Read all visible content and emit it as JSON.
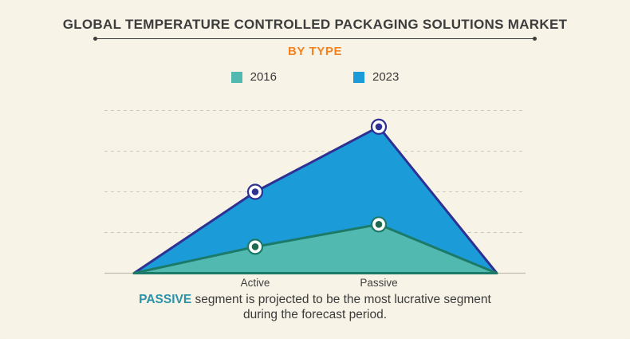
{
  "header": {
    "title": "GLOBAL TEMPERATURE CONTROLLED PACKAGING SOLUTIONS MARKET",
    "subtitle": "BY TYPE"
  },
  "colors": {
    "background": "#f6f2e4",
    "title_text": "#3d3d3d",
    "subtitle_orange": "#f5821f",
    "body_text": "#3b3b3b",
    "gridline": "#ccc8b7",
    "axis_line": "#c2beae",
    "footnote_highlight": "#2a93a9"
  },
  "chart_data": {
    "type": "area",
    "categories": [
      "Active",
      "Passive"
    ],
    "series": [
      {
        "name": "2016",
        "values": [
          0.65,
          1.2
        ],
        "fill": "#52b9b1",
        "stroke": "#1c7a68",
        "marker_center": "#1c6b4e"
      },
      {
        "name": "2023",
        "values": [
          2.0,
          3.6
        ],
        "fill": "#1b9cd8",
        "stroke": "#2e3192",
        "marker_center": "#2e3192"
      }
    ],
    "title": "GLOBAL TEMPERATURE CONTROLLED PACKAGING SOLUTIONS MARKET",
    "subtitle": "BY TYPE",
    "xlabel": "",
    "ylabel": "",
    "ylim": [
      0,
      4.3
    ],
    "yaxis_labeled": false,
    "gridlines": {
      "count": 4,
      "style": "dashed",
      "orientation": "horizontal"
    },
    "legend_position": "top",
    "shape_note": "Each series rises from zero at the left end of the axis, peaks at Passive, and returns to zero at the right end, forming overlapping filled triangles with ring markers at category points"
  },
  "footnote": {
    "highlight": "PASSIVE",
    "line1_rest": " segment is projected to be the most lucrative segment",
    "line2": "during the forecast period."
  }
}
